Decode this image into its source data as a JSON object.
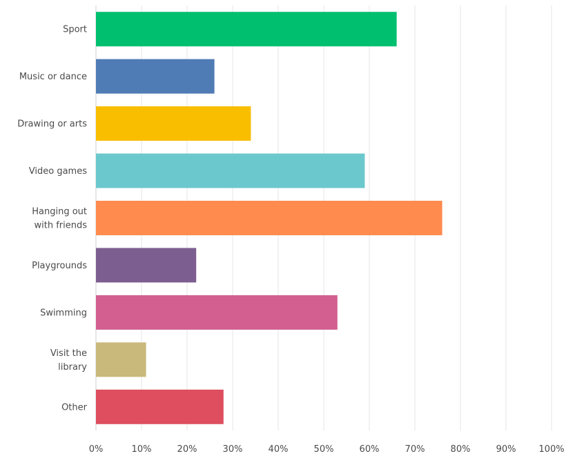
{
  "chart_data": {
    "type": "bar",
    "orientation": "horizontal",
    "title": "",
    "xlabel": "",
    "ylabel": "",
    "xlim": [
      0,
      100
    ],
    "grid": true,
    "legend": "none",
    "categories": [
      "Sport",
      "Music or dance",
      "Drawing or arts",
      "Video games",
      "Hanging out\nwith friends",
      "Playgrounds",
      "Swimming",
      "Visit the\nlibrary",
      "Other"
    ],
    "values": [
      66,
      26,
      34,
      59,
      76,
      22,
      53,
      11,
      28
    ],
    "colors": [
      "#00bf6f",
      "#507cb6",
      "#f9be00",
      "#6bc8cd",
      "#ff8b4f",
      "#7d5e90",
      "#d25f90",
      "#c9b97a",
      "#de4e5e"
    ],
    "ticks": [
      "0%",
      "10%",
      "20%",
      "30%",
      "40%",
      "50%",
      "60%",
      "70%",
      "80%",
      "90%",
      "100%"
    ]
  }
}
